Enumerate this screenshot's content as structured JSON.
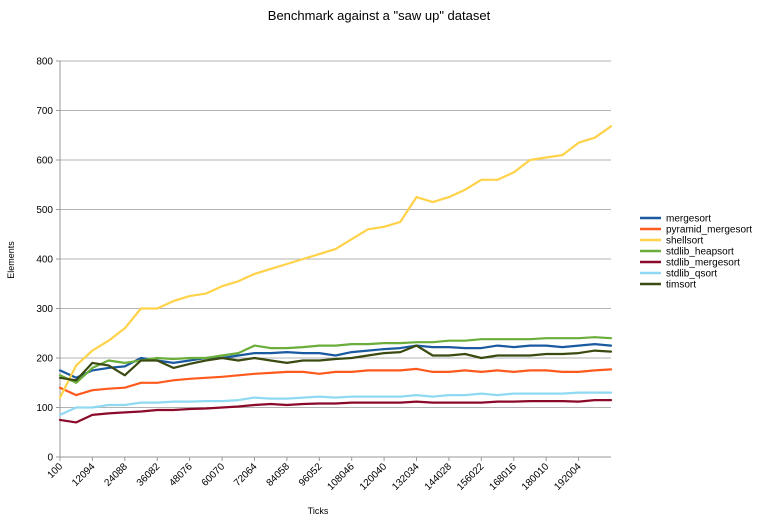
{
  "chart_data": {
    "type": "line",
    "title": "Benchmark against a \"saw up\" dataset",
    "xlabel": "Ticks",
    "ylabel": "Elements",
    "ylim": [
      0,
      800
    ],
    "yticks": [
      0,
      100,
      200,
      300,
      400,
      500,
      600,
      700,
      800
    ],
    "xlim": [
      100,
      204004
    ],
    "xticks": [
      100,
      12094,
      24088,
      36082,
      48076,
      60070,
      72064,
      84058,
      96052,
      108046,
      120040,
      132034,
      144028,
      156022,
      168016,
      180010,
      192004
    ],
    "grid": "horizontal",
    "legend": "right",
    "x": [
      100,
      6097,
      12094,
      18091,
      24088,
      30085,
      36082,
      42079,
      48076,
      54073,
      60070,
      66067,
      72064,
      78061,
      84058,
      90055,
      96052,
      102049,
      108046,
      114043,
      120040,
      126037,
      132034,
      138031,
      144028,
      150025,
      156022,
      162019,
      168016,
      174013,
      180010,
      186007,
      192004,
      198001,
      204004
    ],
    "series": [
      {
        "name": "mergesort",
        "color": "#1a5aa0",
        "values": [
          175,
          160,
          175,
          180,
          183,
          200,
          195,
          190,
          195,
          200,
          200,
          205,
          210,
          210,
          212,
          210,
          210,
          205,
          212,
          215,
          218,
          220,
          225,
          222,
          222,
          220,
          220,
          225,
          222,
          225,
          225,
          222,
          225,
          228,
          225
        ]
      },
      {
        "name": "pyramid_mergesort",
        "color": "#ff5a1e",
        "values": [
          140,
          125,
          135,
          138,
          140,
          150,
          150,
          155,
          158,
          160,
          162,
          165,
          168,
          170,
          172,
          172,
          168,
          172,
          172,
          175,
          175,
          175,
          178,
          172,
          172,
          175,
          172,
          175,
          172,
          175,
          175,
          172,
          172,
          175,
          177
        ]
      },
      {
        "name": "shellsort",
        "color": "#ffd24a",
        "values": [
          120,
          185,
          215,
          235,
          260,
          300,
          300,
          315,
          325,
          330,
          345,
          355,
          370,
          380,
          390,
          400,
          410,
          420,
          440,
          460,
          465,
          475,
          525,
          515,
          525,
          540,
          560,
          560,
          575,
          600,
          605,
          610,
          635,
          645,
          668
        ]
      },
      {
        "name": "stdlib_heapsort",
        "color": "#6aad3a",
        "values": [
          165,
          150,
          180,
          195,
          190,
          195,
          200,
          198,
          200,
          200,
          205,
          210,
          225,
          220,
          220,
          222,
          225,
          225,
          228,
          228,
          230,
          230,
          232,
          232,
          235,
          235,
          238,
          238,
          238,
          238,
          240,
          240,
          240,
          242,
          240
        ]
      },
      {
        "name": "stdlib_mergesort",
        "color": "#8b0a2a",
        "values": [
          75,
          70,
          85,
          88,
          90,
          92,
          95,
          95,
          97,
          98,
          100,
          102,
          105,
          107,
          105,
          107,
          108,
          108,
          110,
          110,
          110,
          110,
          112,
          110,
          110,
          110,
          110,
          112,
          112,
          113,
          113,
          113,
          112,
          115,
          115
        ]
      },
      {
        "name": "stdlib_qsort",
        "color": "#8fd9f2",
        "values": [
          85,
          100,
          100,
          105,
          105,
          110,
          110,
          112,
          112,
          113,
          113,
          115,
          120,
          118,
          118,
          120,
          122,
          120,
          122,
          122,
          122,
          122,
          125,
          122,
          125,
          125,
          128,
          125,
          128,
          128,
          128,
          128,
          130,
          130,
          130
        ]
      },
      {
        "name": "timsort",
        "color": "#3a4a10",
        "values": [
          160,
          155,
          190,
          185,
          165,
          195,
          195,
          180,
          188,
          195,
          200,
          195,
          200,
          195,
          190,
          195,
          195,
          198,
          200,
          205,
          210,
          212,
          225,
          205,
          205,
          208,
          200,
          205,
          205,
          205,
          208,
          208,
          210,
          215,
          213
        ]
      }
    ]
  }
}
